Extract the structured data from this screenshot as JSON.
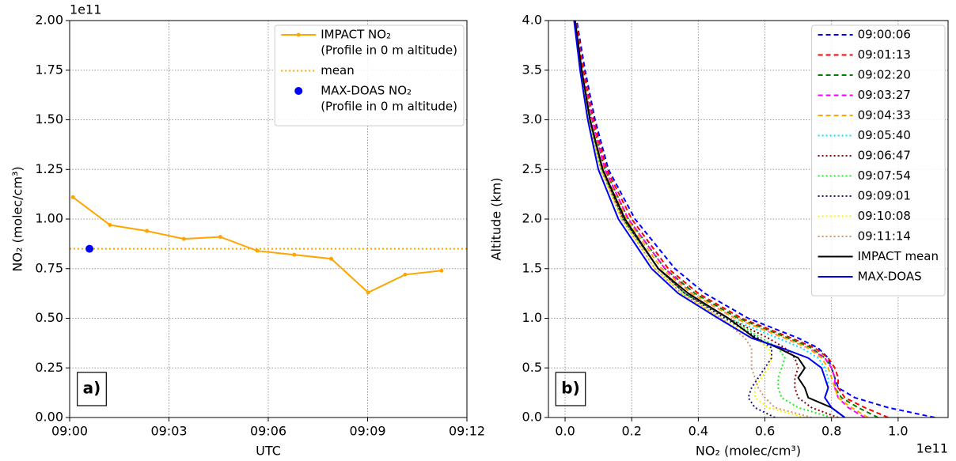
{
  "chart_data": [
    {
      "type": "line",
      "x": [
        "09:00:06",
        "09:01:13",
        "09:02:20",
        "09:03:27",
        "09:04:33",
        "09:05:40",
        "09:06:47",
        "09:07:54",
        "09:09:01",
        "09:10:08",
        "09:11:14"
      ],
      "xlim": [
        "09:00",
        "09:12"
      ],
      "xticks": [
        "09:00",
        "09:03",
        "09:06",
        "09:09",
        "09:12"
      ],
      "xlabel": "UTC",
      "ylim": [
        0,
        2
      ],
      "ylabel": "NO₂ (molec/cm³)",
      "yoffset": "1e11",
      "yticks": [
        {
          "value": 0,
          "label": "0.00"
        },
        0.25,
        {
          "value": 0.5,
          "label": "0.50"
        },
        0.75,
        {
          "value": 1,
          "label": "1.00"
        },
        1.25,
        {
          "value": 1.5,
          "label": "1.50"
        },
        1.75,
        {
          "value": 2,
          "label": "2.00"
        }
      ],
      "grid": true,
      "legend": "upper right",
      "annotation": "a)",
      "series": [
        {
          "name": [
            "IMPACT NO₂",
            "(Profile in 0 m altitude)"
          ],
          "color": "#ffa500",
          "style": "solid",
          "marker": true,
          "values": [
            1.11,
            0.97,
            0.94,
            0.9,
            0.91,
            0.84,
            0.82,
            0.8,
            0.63,
            0.72,
            0.74
          ]
        },
        {
          "name": [
            "mean"
          ],
          "color": "#ffa500",
          "style": "dotted",
          "value": 0.85
        },
        {
          "name": [
            "MAX-DOAS NO₂",
            "(Profile in 0 m altitude)"
          ],
          "color": "#0000ff",
          "style": "none",
          "marker": true,
          "x": [
            "09:00:36"
          ],
          "values": [
            0.85
          ]
        }
      ]
    },
    {
      "type": "line",
      "value_axis": "x",
      "y": [
        0,
        0.1,
        0.2,
        0.3,
        0.4,
        0.5,
        0.6,
        0.7,
        0.8,
        1.0,
        1.25,
        1.5,
        2.0,
        2.5,
        3.0,
        3.5,
        4.0
      ],
      "xlim": [
        -0.05,
        1.15
      ],
      "xticks": [
        {
          "value": 0,
          "label": "0.0"
        },
        0.2,
        0.4,
        0.6,
        0.8,
        {
          "value": 1,
          "label": "1.0"
        }
      ],
      "xlabel": "NO₂ (molec/cm³)",
      "xoffset": "1e11",
      "ylim": [
        0,
        4
      ],
      "yticks": [
        {
          "value": 0,
          "label": "0.0"
        },
        0.5,
        {
          "value": 1,
          "label": "1.0"
        },
        1.5,
        {
          "value": 2,
          "label": "2.0"
        },
        2.5,
        {
          "value": 3,
          "label": "3.0"
        },
        3.5,
        {
          "value": 4,
          "label": "4.0"
        }
      ],
      "ylabel": "Altitude (km)",
      "grid": true,
      "legend": "upper right",
      "annotation": "b)",
      "series": [
        {
          "name": "09:00:06",
          "color": "#0000ff",
          "style": "dashed",
          "values": [
            1.11,
            0.97,
            0.87,
            0.82,
            0.81,
            0.8,
            0.79,
            0.76,
            0.7,
            0.55,
            0.42,
            0.33,
            0.21,
            0.13,
            0.09,
            0.06,
            0.035
          ]
        },
        {
          "name": "09:01:13",
          "color": "#ff0000",
          "style": "dashed",
          "values": [
            0.97,
            0.9,
            0.84,
            0.82,
            0.82,
            0.81,
            0.79,
            0.75,
            0.68,
            0.53,
            0.4,
            0.31,
            0.2,
            0.125,
            0.085,
            0.055,
            0.033
          ]
        },
        {
          "name": "09:02:20",
          "color": "#008000",
          "style": "dashed",
          "values": [
            0.94,
            0.88,
            0.83,
            0.81,
            0.81,
            0.8,
            0.78,
            0.74,
            0.67,
            0.52,
            0.39,
            0.3,
            0.19,
            0.12,
            0.08,
            0.05,
            0.03
          ]
        },
        {
          "name": "09:03:27",
          "color": "#ff00ff",
          "style": "dashed",
          "values": [
            0.9,
            0.85,
            0.82,
            0.81,
            0.81,
            0.8,
            0.78,
            0.73,
            0.66,
            0.51,
            0.38,
            0.3,
            0.19,
            0.12,
            0.08,
            0.05,
            0.03
          ]
        },
        {
          "name": "09:04:33",
          "color": "#ffa500",
          "style": "dashed",
          "values": [
            0.91,
            0.86,
            0.82,
            0.81,
            0.8,
            0.79,
            0.77,
            0.73,
            0.66,
            0.51,
            0.38,
            0.29,
            0.185,
            0.115,
            0.077,
            0.05,
            0.03
          ]
        },
        {
          "name": "09:05:40",
          "color": "#00e5ff",
          "style": "dotted",
          "values": [
            0.84,
            0.8,
            0.78,
            0.79,
            0.79,
            0.78,
            0.76,
            0.71,
            0.64,
            0.49,
            0.36,
            0.28,
            0.175,
            0.11,
            0.072,
            0.047,
            0.028
          ]
        },
        {
          "name": "09:06:47",
          "color": "#8b0000",
          "style": "dotted",
          "values": [
            0.82,
            0.74,
            0.7,
            0.69,
            0.69,
            0.7,
            0.69,
            0.66,
            0.61,
            0.49,
            0.36,
            0.28,
            0.175,
            0.11,
            0.072,
            0.047,
            0.028
          ]
        },
        {
          "name": "09:07:54",
          "color": "#22ee22",
          "style": "dotted",
          "values": [
            0.8,
            0.7,
            0.65,
            0.64,
            0.64,
            0.65,
            0.66,
            0.64,
            0.59,
            0.49,
            0.36,
            0.28,
            0.175,
            0.11,
            0.072,
            0.047,
            0.028
          ]
        },
        {
          "name": "09:09:01",
          "color": "#191970",
          "style": "dotted",
          "values": [
            0.63,
            0.57,
            0.55,
            0.56,
            0.58,
            0.6,
            0.62,
            0.62,
            0.58,
            0.48,
            0.36,
            0.28,
            0.175,
            0.11,
            0.072,
            0.047,
            0.028
          ]
        },
        {
          "name": "09:10:08",
          "color": "#f5f500",
          "style": "dotted",
          "values": [
            0.72,
            0.61,
            0.57,
            0.57,
            0.59,
            0.61,
            0.62,
            0.61,
            0.57,
            0.47,
            0.35,
            0.27,
            0.17,
            0.107,
            0.07,
            0.046,
            0.028
          ]
        },
        {
          "name": "09:11:14",
          "color": "#d2936b",
          "style": "dotted",
          "values": [
            0.74,
            0.63,
            0.6,
            0.58,
            0.57,
            0.56,
            0.56,
            0.56,
            0.54,
            0.47,
            0.35,
            0.27,
            0.17,
            0.107,
            0.07,
            0.046,
            0.028
          ]
        },
        {
          "name": "IMPACT mean",
          "color": "#000000",
          "style": "solid",
          "values": [
            0.84,
            0.8,
            0.73,
            0.72,
            0.7,
            0.72,
            0.7,
            0.64,
            0.57,
            0.49,
            0.37,
            0.28,
            0.18,
            0.113,
            0.075,
            0.05,
            0.03
          ]
        },
        {
          "name": "MAX-DOAS",
          "color": "#0000ee",
          "style": "solid",
          "values": [
            0.84,
            0.8,
            0.78,
            0.79,
            0.78,
            0.77,
            0.73,
            0.65,
            0.56,
            0.46,
            0.34,
            0.26,
            0.16,
            0.1,
            0.068,
            0.045,
            0.027
          ]
        }
      ]
    }
  ]
}
